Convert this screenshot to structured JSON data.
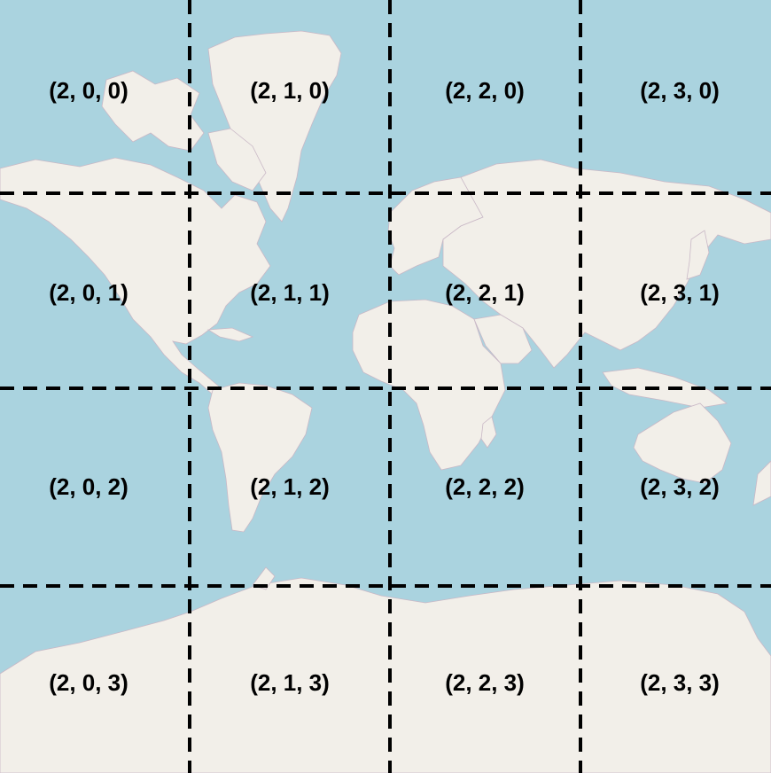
{
  "map": {
    "colors": {
      "ocean": "#aad3df",
      "land": "#f2efe9",
      "border": "#c9b8c6",
      "grid": "#000000",
      "label": "#000000"
    },
    "grid": {
      "columns": 4,
      "rows": 4,
      "line_style": "dashed"
    },
    "tiles": [
      {
        "label": "(2, 0, 0)"
      },
      {
        "label": "(2, 1, 0)"
      },
      {
        "label": "(2, 2, 0)"
      },
      {
        "label": "(2, 3, 0)"
      },
      {
        "label": "(2, 0, 1)"
      },
      {
        "label": "(2, 1, 1)"
      },
      {
        "label": "(2, 2, 1)"
      },
      {
        "label": "(2, 3, 1)"
      },
      {
        "label": "(2, 0, 2)"
      },
      {
        "label": "(2, 1, 2)"
      },
      {
        "label": "(2, 2, 2)"
      },
      {
        "label": "(2, 3, 2)"
      },
      {
        "label": "(2, 0, 3)"
      },
      {
        "label": "(2, 1, 3)"
      },
      {
        "label": "(2, 2, 3)"
      },
      {
        "label": "(2, 3, 3)"
      }
    ]
  }
}
